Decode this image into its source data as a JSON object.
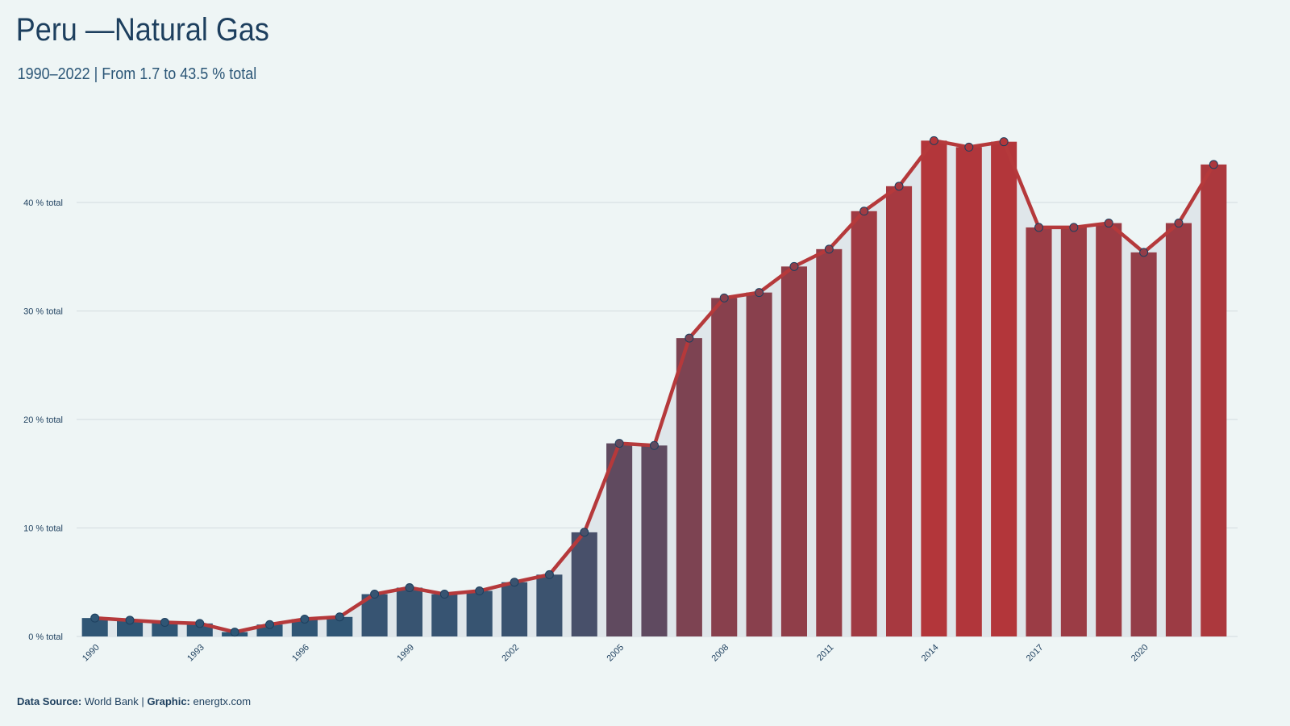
{
  "chart_data": {
    "type": "bar",
    "title": "Peru —Natural Gas",
    "subtitle": "1990–2022 | From 1.7 to 43.5 % total",
    "x": [
      1990,
      1991,
      1992,
      1993,
      1994,
      1995,
      1996,
      1997,
      1998,
      1999,
      2000,
      2001,
      2002,
      2003,
      2004,
      2005,
      2006,
      2007,
      2008,
      2009,
      2010,
      2011,
      2012,
      2013,
      2014,
      2015,
      2016,
      2017,
      2018,
      2019,
      2020,
      2021,
      2022
    ],
    "values": [
      1.7,
      1.5,
      1.3,
      1.2,
      0.4,
      1.1,
      1.6,
      1.8,
      3.9,
      4.5,
      3.9,
      4.2,
      5.0,
      5.7,
      9.6,
      17.8,
      17.6,
      27.5,
      31.2,
      31.7,
      34.1,
      35.7,
      39.2,
      41.5,
      45.7,
      45.1,
      45.6,
      37.7,
      37.7,
      38.1,
      35.4,
      38.1,
      43.5
    ],
    "bar_colors": [
      "#2b5777",
      "#b3363a"
    ],
    "line_color": "#b5393b",
    "area_color": "#dfe6ea",
    "xlim": [
      1989.5,
      2022.5
    ],
    "xticks": [
      1990,
      1993,
      1996,
      1999,
      2002,
      2005,
      2008,
      2011,
      2014,
      2017,
      2020
    ],
    "ylim": [
      0,
      48
    ],
    "yticks": [
      {
        "value": 0,
        "label": "0 % total"
      },
      {
        "value": 10,
        "label": "10 % total"
      },
      {
        "value": 20,
        "label": "20 % total"
      },
      {
        "value": 30,
        "label": "30 % total"
      },
      {
        "value": 40,
        "label": "40 % total"
      }
    ],
    "grid": true,
    "footer": {
      "source_label": "Data Source:",
      "source": "World Bank",
      "separator": "|",
      "graphic_label": "Graphic:",
      "graphic": "energtx.com"
    }
  }
}
